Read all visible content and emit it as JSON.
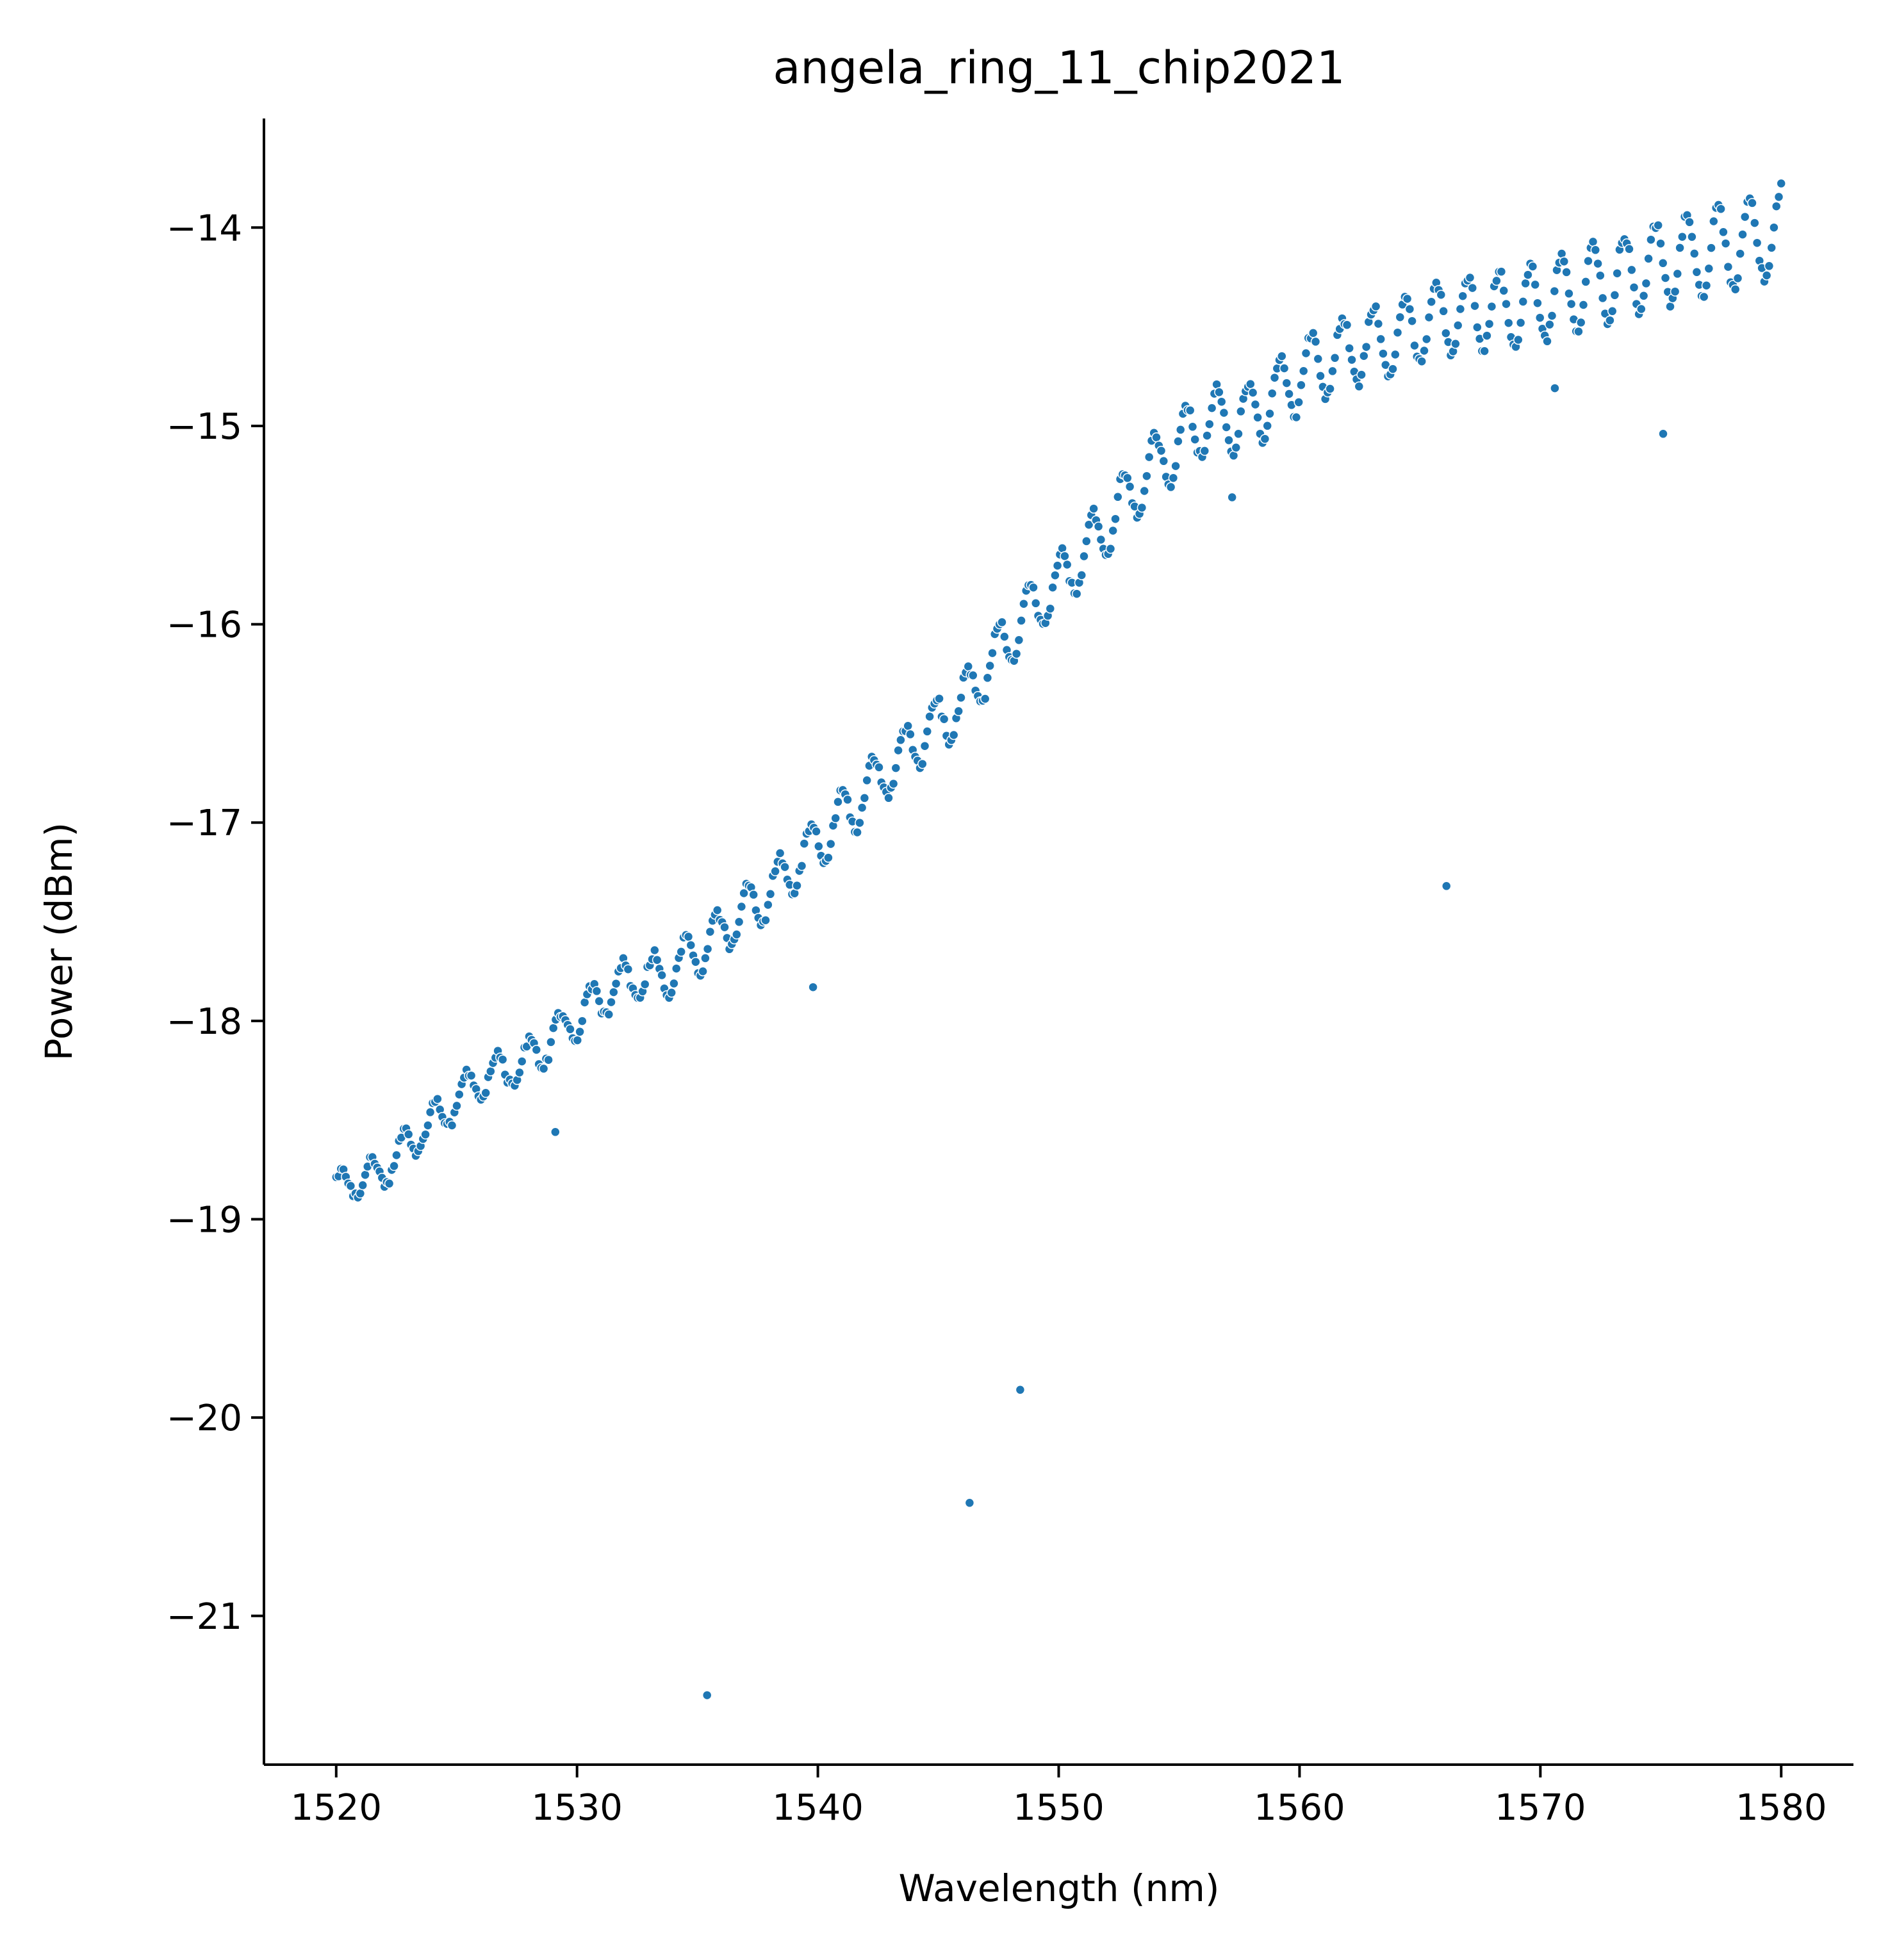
{
  "chart_data": {
    "type": "scatter",
    "title": "angela_ring_11_chip2021",
    "xlabel": "Wavelength (nm)",
    "ylabel": "Power (dBm)",
    "xlim": [
      1517,
      1583
    ],
    "ylim": [
      -21.75,
      -13.45
    ],
    "xticks": [
      1520,
      1530,
      1540,
      1550,
      1560,
      1570,
      1580
    ],
    "yticks": [
      -14,
      -15,
      -16,
      -17,
      -18,
      -19,
      -20,
      -21
    ],
    "xtick_labels": [
      "1520",
      "1530",
      "1540",
      "1550",
      "1560",
      "1570",
      "1580"
    ],
    "ytick_labels": [
      "−14",
      "−15",
      "−16",
      "−17",
      "−18",
      "−19",
      "−20",
      "−21"
    ],
    "grid": false,
    "marker_color": "#1f77b4",
    "wavelength_start_nm": 1520,
    "wavelength_end_nm": 1580,
    "num_points": 600,
    "trend_points": [
      [
        1520,
        -18.85
      ],
      [
        1522,
        -18.75
      ],
      [
        1524,
        -18.5
      ],
      [
        1526,
        -18.3
      ],
      [
        1528,
        -18.2
      ],
      [
        1530,
        -17.98
      ],
      [
        1532,
        -17.8
      ],
      [
        1534,
        -17.75
      ],
      [
        1536,
        -17.55
      ],
      [
        1538,
        -17.35
      ],
      [
        1540,
        -17.1
      ],
      [
        1542,
        -16.85
      ],
      [
        1544,
        -16.6
      ],
      [
        1546,
        -16.4
      ],
      [
        1548,
        -16.05
      ],
      [
        1550,
        -15.8
      ],
      [
        1552,
        -15.5
      ],
      [
        1554,
        -15.2
      ],
      [
        1556,
        -14.98
      ],
      [
        1558,
        -14.95
      ],
      [
        1560,
        -14.75
      ],
      [
        1562,
        -14.62
      ],
      [
        1564,
        -14.55
      ],
      [
        1566,
        -14.45
      ],
      [
        1568,
        -14.42
      ],
      [
        1570,
        -14.38
      ],
      [
        1572,
        -14.3
      ],
      [
        1574,
        -14.22
      ],
      [
        1576,
        -14.15
      ],
      [
        1578,
        -14.1
      ],
      [
        1580,
        -14.02
      ]
    ],
    "ripple_amplitude_dbm": [
      [
        1520,
        0.08
      ],
      [
        1550,
        0.15
      ],
      [
        1580,
        0.22
      ]
    ],
    "ripple_period_nm": 1.3,
    "outliers": [
      {
        "x": 1529.1,
        "y": -18.56
      },
      {
        "x": 1535.4,
        "y": -21.4
      },
      {
        "x": 1539.8,
        "y": -17.83
      },
      {
        "x": 1546.3,
        "y": -20.43
      },
      {
        "x": 1548.4,
        "y": -19.86
      },
      {
        "x": 1557.2,
        "y": -15.36
      },
      {
        "x": 1566.1,
        "y": -17.32
      },
      {
        "x": 1570.6,
        "y": -14.81
      },
      {
        "x": 1575.1,
        "y": -15.04
      }
    ]
  }
}
